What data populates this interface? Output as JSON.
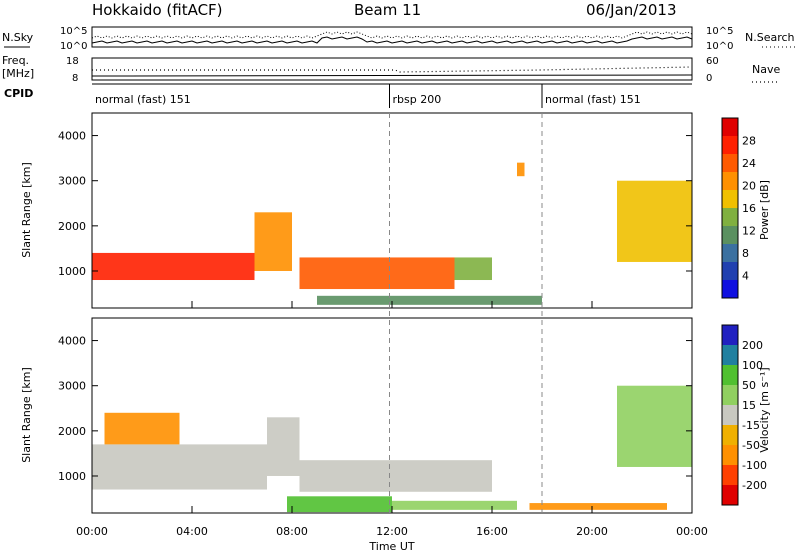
{
  "header": {
    "station": "Hokkaido (fitACF)",
    "beam": "Beam 11",
    "date": "06/Jan/2013"
  },
  "top_labels": {
    "nsky": "N.Sky",
    "nsearch": "N.Search",
    "freq": "Freq.",
    "freq_unit": "[MHz]",
    "nave": "Nave",
    "cpid": "CPID",
    "ns_ticks": [
      "10^5",
      "10^0"
    ],
    "freq_ticks": [
      "18",
      "8"
    ],
    "nave_ticks": [
      "60",
      "0"
    ]
  },
  "cpid_segments": [
    {
      "label": "normal (fast) 151",
      "start_hour": 0,
      "end_hour": 11.9
    },
    {
      "label": "rbsp 200",
      "start_hour": 11.9,
      "end_hour": 18
    },
    {
      "label": "normal (fast) 151",
      "start_hour": 18,
      "end_hour": 24
    }
  ],
  "x_axis": {
    "label": "Time UT",
    "ticks": [
      "00:00",
      "04:00",
      "08:00",
      "12:00",
      "16:00",
      "20:00",
      "00:00"
    ]
  },
  "colors": {
    "power": [
      "#1010e0",
      "#2040b0",
      "#3a70a0",
      "#5a9060",
      "#80b040",
      "#f0c000",
      "#ff9000",
      "#ff5a00",
      "#ff2000",
      "#e00000"
    ],
    "velocity": [
      "#e00000",
      "#ff4000",
      "#ff9000",
      "#f0b000",
      "#c8c8c0",
      "#90d060",
      "#50c030",
      "#2080a0",
      "#2020c0"
    ]
  },
  "chart_data": [
    {
      "type": "heatmap",
      "title": "",
      "ylabel": "Slant Range [km]",
      "xlabel": "",
      "x_range_hours": [
        0,
        24
      ],
      "ylim": [
        180,
        4500
      ],
      "yticks": [
        1000,
        2000,
        3000,
        4000
      ],
      "colorbar": {
        "label": "Power [dB]",
        "min": 0,
        "max": 32,
        "ticks": [
          4,
          8,
          12,
          16,
          20,
          24,
          28
        ]
      },
      "echo_regions": [
        {
          "t0": 0,
          "t1": 6.5,
          "r0": 800,
          "r1": 1400,
          "level": 27
        },
        {
          "t0": 6.5,
          "t1": 8,
          "r0": 1000,
          "r1": 2300,
          "level": 22
        },
        {
          "t0": 8.3,
          "t1": 14.5,
          "r0": 600,
          "r1": 1300,
          "level": 25
        },
        {
          "t0": 14.5,
          "t1": 16,
          "r0": 800,
          "r1": 1300,
          "level": 14
        },
        {
          "t0": 9,
          "t1": 18,
          "r0": 250,
          "r1": 450,
          "level": 10
        },
        {
          "t0": 17,
          "t1": 17.3,
          "r0": 3100,
          "r1": 3400,
          "level": 20
        },
        {
          "t0": 21,
          "t1": 24,
          "r0": 1200,
          "r1": 3000,
          "level": 18
        }
      ]
    },
    {
      "type": "heatmap",
      "title": "",
      "ylabel": "Slant Range [km]",
      "xlabel": "Time UT",
      "x_range_hours": [
        0,
        24
      ],
      "ylim": [
        180,
        4500
      ],
      "yticks": [
        1000,
        2000,
        3000,
        4000
      ],
      "colorbar": {
        "label": "Velocity [m s⁻¹]",
        "min": -250,
        "max": 250,
        "ticks": [
          200,
          100,
          50,
          15,
          -15,
          -50,
          -100,
          -200
        ]
      },
      "echo_regions": [
        {
          "t0": 0,
          "t1": 7,
          "r0": 700,
          "r1": 1700,
          "level": 0
        },
        {
          "t0": 7,
          "t1": 8.3,
          "r0": 1000,
          "r1": 2300,
          "level": 0
        },
        {
          "t0": 8.3,
          "t1": 16,
          "r0": 650,
          "r1": 1350,
          "level": 0
        },
        {
          "t0": 7.8,
          "t1": 12,
          "r0": 200,
          "r1": 550,
          "level": 60
        },
        {
          "t0": 12,
          "t1": 17,
          "r0": 250,
          "r1": 450,
          "level": 30
        },
        {
          "t0": 17.5,
          "t1": 23,
          "r0": 250,
          "r1": 400,
          "level": -70
        },
        {
          "t0": 21,
          "t1": 24,
          "r0": 1200,
          "r1": 3000,
          "level": 40
        },
        {
          "t0": 0.5,
          "t1": 3.5,
          "r0": 1700,
          "r1": 2400,
          "level": -60
        }
      ]
    }
  ]
}
